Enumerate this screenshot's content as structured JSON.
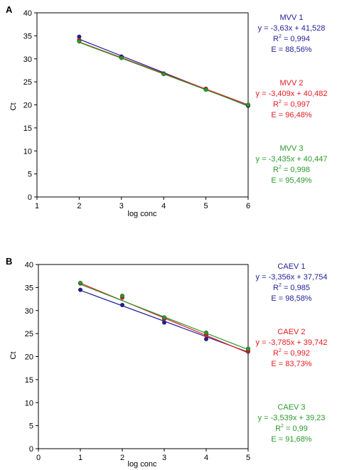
{
  "chart_data": [
    {
      "type": "scatter",
      "panel_label": "A",
      "xlabel": "log conc",
      "ylabel": "Ct",
      "xlim": [
        1,
        6
      ],
      "ylim": [
        0,
        40
      ],
      "xticks": [
        1,
        2,
        3,
        4,
        5,
        6
      ],
      "yticks": [
        0,
        5,
        10,
        15,
        20,
        25,
        30,
        35,
        40
      ],
      "x": [
        2,
        3,
        4,
        5,
        6
      ],
      "series": [
        {
          "name": "MVV 1",
          "color": "#1f1f99",
          "values": [
            34.8,
            30.5,
            26.8,
            23.4,
            19.8
          ],
          "fit": {
            "slope": -3.63,
            "intercept": 41.528
          },
          "equation": "y = -3,63x + 41,528",
          "r2_prefix": "R",
          "r2_sup": "2",
          "r2_value": " = 0,994",
          "efficiency": "E = 88,56%"
        },
        {
          "name": "MVV 2",
          "color": "#e8191f",
          "values": [
            34.1,
            30.3,
            26.8,
            23.5,
            20.0
          ],
          "fit": {
            "slope": -3.409,
            "intercept": 40.482
          },
          "equation": "y = -3,409x + 40,482",
          "r2_prefix": "R",
          "r2_sup": "2",
          "r2_value": " = 0,997",
          "efficiency": "E = 96,48%"
        },
        {
          "name": "MVV 3",
          "color": "#2a9a2a",
          "values": [
            33.8,
            30.2,
            26.7,
            23.3,
            20.0
          ],
          "fit": {
            "slope": -3.435,
            "intercept": 40.447
          },
          "equation": "y = -3,435x + 40,447",
          "r2_prefix": "R",
          "r2_sup": "2",
          "r2_value": " = 0,998",
          "efficiency": "E = 95,49%"
        }
      ]
    },
    {
      "type": "scatter",
      "panel_label": "B",
      "xlabel": "log conc",
      "ylabel": "Ct",
      "xlim": [
        0,
        5
      ],
      "ylim": [
        0,
        40
      ],
      "xticks": [
        0,
        1,
        2,
        3,
        4,
        5
      ],
      "yticks": [
        0,
        5,
        10,
        15,
        20,
        25,
        30,
        35,
        40
      ],
      "x": [
        1,
        2,
        3,
        4,
        5
      ],
      "series": [
        {
          "name": "CAEV 1",
          "color": "#1f1f99",
          "values": [
            34.5,
            31.2,
            27.4,
            23.8,
            21.1
          ],
          "fit": {
            "slope": -3.356,
            "intercept": 37.754
          },
          "equation": "y = -3,356x + 37,754",
          "r2_prefix": "R",
          "r2_sup": "2",
          "r2_value": " = 0,985",
          "efficiency": "E = 98,58%"
        },
        {
          "name": "CAEV 2",
          "color": "#e8191f",
          "values": [
            35.9,
            32.8,
            28.2,
            24.6,
            21.2
          ],
          "fit": {
            "slope": -3.785,
            "intercept": 39.742
          },
          "equation": "y = -3,785x + 39,742",
          "r2_prefix": "R",
          "r2_sup": "2",
          "r2_value": " = 0,992",
          "efficiency": "E = 83,73%"
        },
        {
          "name": "CAEV 3",
          "color": "#2a9a2a",
          "values": [
            36.0,
            33.2,
            28.5,
            25.2,
            21.7
          ],
          "fit": {
            "slope": -3.539,
            "intercept": 39.23
          },
          "equation": "y = -3,539x + 39,23",
          "r2_prefix": "R",
          "r2_sup": "2",
          "r2_value": " = 0,99",
          "efficiency": "E = 91,68%"
        }
      ]
    }
  ]
}
